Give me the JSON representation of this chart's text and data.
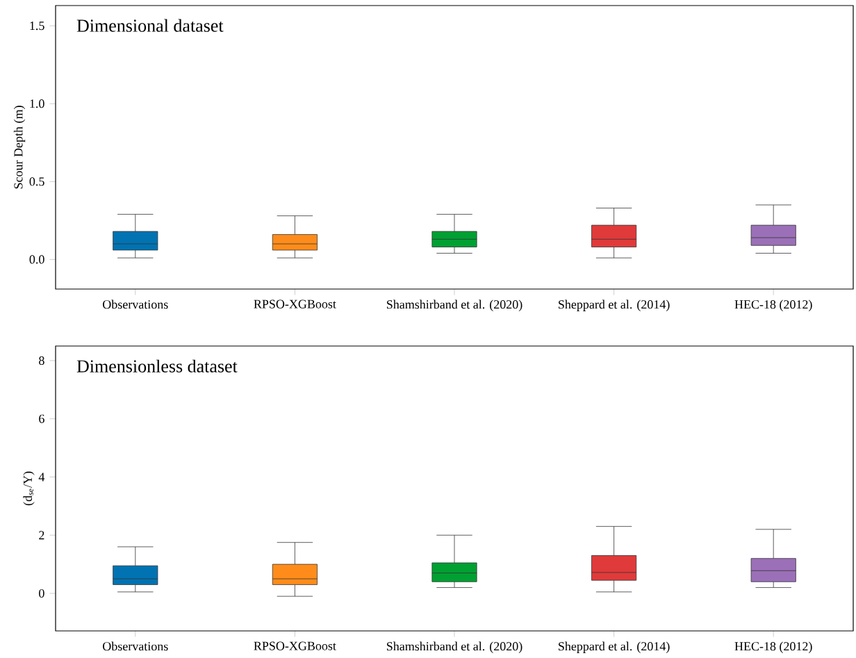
{
  "chart_data": [
    {
      "type": "box",
      "title": "Dimensional dataset",
      "ylabel": "Scour Depth (m)",
      "categories": [
        "Observations",
        "RPSO-XGBoost",
        "Shamshirband et al. (2020)",
        "Sheppard et al. (2014)",
        "HEC-18 (2012)"
      ],
      "colors": [
        "#0173b2",
        "#ff8c1a",
        "#00a032",
        "#e03a3a",
        "#9b70b8"
      ],
      "boxes": [
        {
          "low": 0.01,
          "q1": 0.06,
          "median": 0.1,
          "q3": 0.18,
          "high": 0.29
        },
        {
          "low": 0.01,
          "q1": 0.06,
          "median": 0.1,
          "q3": 0.16,
          "high": 0.28
        },
        {
          "low": 0.04,
          "q1": 0.08,
          "median": 0.13,
          "q3": 0.18,
          "high": 0.29
        },
        {
          "low": 0.01,
          "q1": 0.08,
          "median": 0.13,
          "q3": 0.22,
          "high": 0.33
        },
        {
          "low": 0.04,
          "q1": 0.09,
          "median": 0.14,
          "q3": 0.22,
          "high": 0.35
        }
      ],
      "ylim": [
        -0.19,
        1.63
      ],
      "yticks": [
        {
          "value": 0,
          "label": "0.0"
        },
        {
          "value": 0.5,
          "label": "0.5"
        },
        {
          "value": 1,
          "label": "1.0"
        },
        {
          "value": 1.5,
          "label": "1.5"
        }
      ]
    },
    {
      "type": "box",
      "title": "Dimensionless dataset",
      "ylabel": "(d$_{se}$/Y)",
      "categories": [
        "Observations",
        "RPSO-XGBoost",
        "Shamshirband et al. (2020)",
        "Sheppard et al. (2014)",
        "HEC-18 (2012)"
      ],
      "colors": [
        "#0173b2",
        "#ff8c1a",
        "#00a032",
        "#e03a3a",
        "#9b70b8"
      ],
      "boxes": [
        {
          "low": 0.05,
          "q1": 0.3,
          "median": 0.5,
          "q3": 0.95,
          "high": 1.6
        },
        {
          "low": -0.1,
          "q1": 0.3,
          "median": 0.5,
          "q3": 1.0,
          "high": 1.75
        },
        {
          "low": 0.2,
          "q1": 0.4,
          "median": 0.7,
          "q3": 1.05,
          "high": 2.0
        },
        {
          "low": 0.05,
          "q1": 0.45,
          "median": 0.72,
          "q3": 1.3,
          "high": 2.3
        },
        {
          "low": 0.2,
          "q1": 0.4,
          "median": 0.78,
          "q3": 1.2,
          "high": 2.2
        }
      ],
      "ylim": [
        -1.29,
        8.5
      ],
      "yticks": [
        0,
        2,
        4,
        6,
        8
      ]
    }
  ]
}
